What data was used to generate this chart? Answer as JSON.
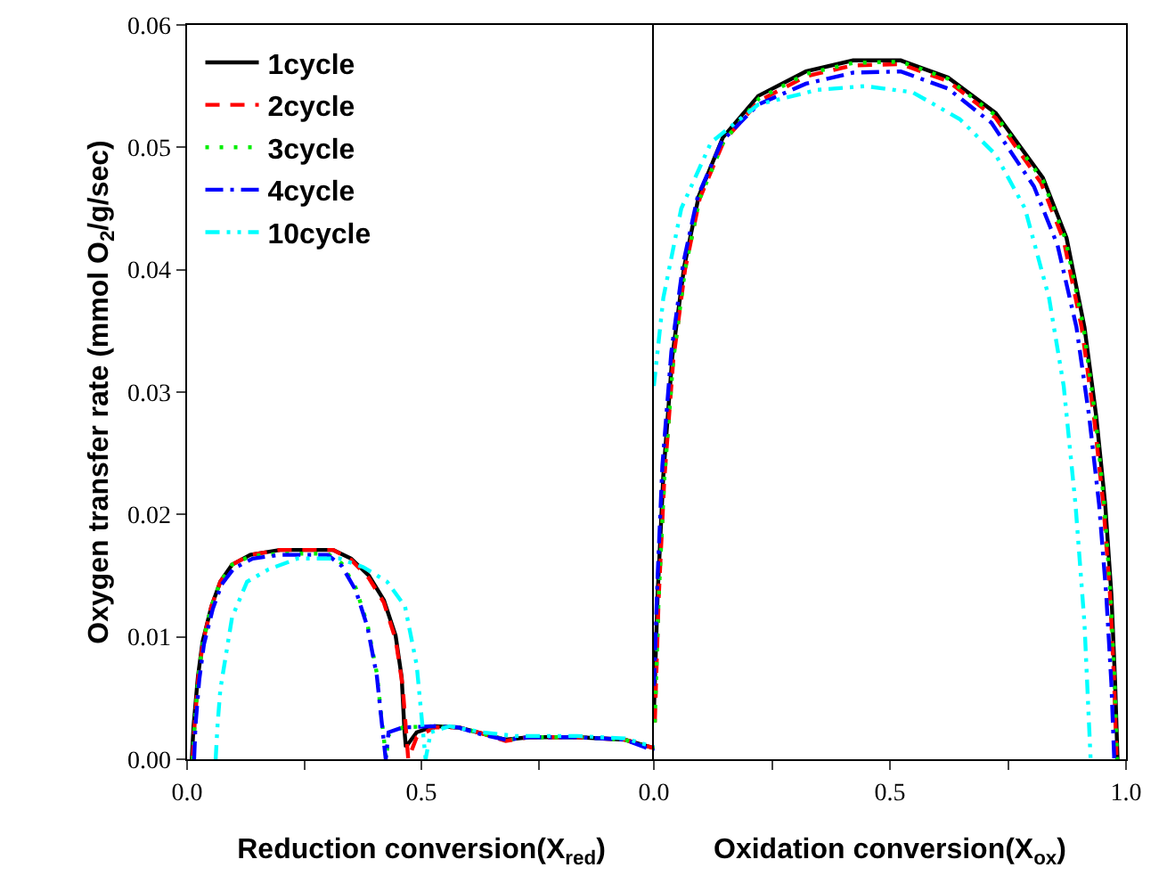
{
  "chart_data": [
    {
      "type": "line",
      "ylabel": "Oxygen transfer rate (mmol O$_{2}$/g/sec)",
      "xlabel": "Reduction conversion(X$_{red}$)",
      "xlim": [
        0,
        1.0
      ],
      "xticks": [
        {
          "value": 0,
          "label": "0.0"
        },
        {
          "value": 0.25,
          "label": null
        },
        0.5,
        {
          "value": 0.75,
          "label": null
        }
      ],
      "ylim": [
        0,
        0.06
      ],
      "yticks": [
        {
          "value": 0,
          "label": "0.00"
        },
        0.01,
        0.02,
        0.03,
        0.04,
        0.05,
        0.06
      ],
      "legend": "top left",
      "series": [
        {
          "name": "1cycle",
          "color": "#000000",
          "line_style": "solid",
          "x": [
            0.01,
            0.014,
            0.023,
            0.033,
            0.052,
            0.071,
            0.096,
            0.135,
            0.198,
            0.312,
            0.35,
            0.388,
            0.42,
            0.445,
            0.458,
            0.464,
            0.467,
            0.49,
            0.528,
            0.579,
            0.63,
            0.68,
            0.731,
            0.832,
            0.934,
            0.997
          ],
          "values": [
            0,
            0.0028,
            0.0067,
            0.0096,
            0.0125,
            0.0145,
            0.0159,
            0.0167,
            0.0171,
            0.0171,
            0.0164,
            0.015,
            0.013,
            0.0101,
            0.0067,
            0.0023,
            0.001,
            0.0022,
            0.0027,
            0.0026,
            0.0021,
            0.0016,
            0.0018,
            0.0018,
            0.0016,
            0.0009
          ]
        },
        {
          "name": "2cycle",
          "color": "#ff0000",
          "line_style": "dashed",
          "x": [
            0.012,
            0.016,
            0.024,
            0.034,
            0.052,
            0.071,
            0.096,
            0.135,
            0.198,
            0.312,
            0.35,
            0.388,
            0.42,
            0.445,
            0.46,
            0.468,
            0.472,
            0.49,
            0.528,
            0.579,
            0.63,
            0.68,
            0.731,
            0.832,
            0.934,
            0.997
          ],
          "values": [
            0,
            0.0028,
            0.0067,
            0.0096,
            0.0125,
            0.0145,
            0.0159,
            0.0167,
            0.0171,
            0.0171,
            0.0163,
            0.0148,
            0.0128,
            0.0098,
            0.006,
            0.002,
            0,
            0.0018,
            0.0026,
            0.0026,
            0.0021,
            0.0015,
            0.0018,
            0.0018,
            0.0016,
            0.0009
          ]
        },
        {
          "name": "3cycle",
          "color": "#00ee00",
          "line_style": "dotted",
          "x": [
            0.012,
            0.016,
            0.024,
            0.034,
            0.052,
            0.071,
            0.096,
            0.135,
            0.198,
            0.3,
            0.33,
            0.36,
            0.385,
            0.405,
            0.416,
            0.425,
            0.43,
            0.46,
            0.528,
            0.579,
            0.63,
            0.68,
            0.731,
            0.832,
            0.934,
            0.997
          ],
          "values": [
            0,
            0.0028,
            0.0067,
            0.0096,
            0.0125,
            0.0145,
            0.0159,
            0.0166,
            0.0168,
            0.0168,
            0.016,
            0.014,
            0.011,
            0.007,
            0.003,
            0,
            0.002,
            0.0026,
            0.0027,
            0.0026,
            0.0021,
            0.0016,
            0.0018,
            0.0018,
            0.0016,
            0.0008
          ]
        },
        {
          "name": "4cycle",
          "color": "#0000ff",
          "line_style": "dashdot",
          "x": [
            0.015,
            0.018,
            0.026,
            0.036,
            0.055,
            0.074,
            0.1,
            0.14,
            0.198,
            0.3,
            0.33,
            0.36,
            0.385,
            0.405,
            0.416,
            0.424,
            0.43,
            0.46,
            0.528,
            0.579,
            0.63,
            0.68,
            0.731,
            0.832,
            0.934,
            0.997
          ],
          "values": [
            0,
            0.0028,
            0.0065,
            0.0094,
            0.0123,
            0.0143,
            0.0156,
            0.0164,
            0.0167,
            0.0167,
            0.0158,
            0.0138,
            0.0108,
            0.0068,
            0.0028,
            0,
            0.0022,
            0.0026,
            0.0027,
            0.0026,
            0.002,
            0.0016,
            0.0018,
            0.0018,
            0.0016,
            0.0007
          ]
        },
        {
          "name": "10cycle",
          "color": "#00ffff",
          "line_style": "dashdotdot",
          "x": [
            0.061,
            0.065,
            0.071,
            0.096,
            0.128,
            0.173,
            0.236,
            0.325,
            0.376,
            0.427,
            0.465,
            0.49,
            0.509,
            0.52,
            0.56,
            0.63,
            0.7,
            0.832,
            0.934,
            0.997
          ],
          "values": [
            0,
            0.0028,
            0.0057,
            0.0116,
            0.0145,
            0.0155,
            0.0164,
            0.0164,
            0.0157,
            0.0145,
            0.0125,
            0.0077,
            0,
            0.0022,
            0.0027,
            0.0022,
            0.0019,
            0.0019,
            0.0017,
            0.001
          ]
        }
      ]
    },
    {
      "type": "line",
      "xlabel": "Oxidation conversion(X$_{ox}$)",
      "xlim": [
        0,
        1.0
      ],
      "xticks": [
        {
          "value": 0,
          "label": "0.0"
        },
        {
          "value": 0.25,
          "label": null
        },
        0.5,
        {
          "value": 0.75,
          "label": null
        },
        {
          "value": 1.0,
          "label": "1.0"
        }
      ],
      "ylim": [
        0,
        0.06
      ],
      "tick_labels": "x",
      "series": [
        {
          "color": "#000000",
          "line_style": "solid",
          "x": [
            0,
            0.008,
            0.02,
            0.039,
            0.064,
            0.095,
            0.146,
            0.221,
            0.322,
            0.422,
            0.523,
            0.623,
            0.724,
            0.824,
            0.874,
            0.912,
            0.937,
            0.956,
            0.969,
            0.977,
            0.982
          ],
          "values": [
            0.0038,
            0.0135,
            0.0232,
            0.0329,
            0.0402,
            0.046,
            0.0508,
            0.0542,
            0.0562,
            0.0571,
            0.0571,
            0.0557,
            0.0528,
            0.0475,
            0.0426,
            0.0353,
            0.028,
            0.0208,
            0.0135,
            0.0062,
            0
          ]
        },
        {
          "color": "#ff0000",
          "line_style": "dashed",
          "x": [
            0.002,
            0.01,
            0.022,
            0.041,
            0.066,
            0.097,
            0.148,
            0.223,
            0.322,
            0.422,
            0.523,
            0.623,
            0.724,
            0.82,
            0.868,
            0.906,
            0.932,
            0.952,
            0.966,
            0.975,
            0.98
          ],
          "values": [
            0.003,
            0.013,
            0.0228,
            0.0326,
            0.04,
            0.0458,
            0.0505,
            0.0538,
            0.0558,
            0.0567,
            0.0568,
            0.0554,
            0.0524,
            0.0471,
            0.0424,
            0.0353,
            0.028,
            0.0208,
            0.0135,
            0.0062,
            0
          ]
        },
        {
          "color": "#00ee00",
          "line_style": "dotted",
          "x": [
            0.002,
            0.01,
            0.022,
            0.041,
            0.066,
            0.097,
            0.148,
            0.223,
            0.322,
            0.422,
            0.523,
            0.623,
            0.724,
            0.824,
            0.872,
            0.91,
            0.935,
            0.954,
            0.967,
            0.976,
            0.981
          ],
          "values": [
            0.003,
            0.013,
            0.0228,
            0.0326,
            0.04,
            0.0458,
            0.0505,
            0.054,
            0.056,
            0.0569,
            0.057,
            0.0556,
            0.0526,
            0.0473,
            0.0425,
            0.0353,
            0.028,
            0.0208,
            0.0135,
            0.0062,
            0
          ]
        },
        {
          "color": "#0000ff",
          "line_style": "dashdot",
          "x": [
            0,
            0.008,
            0.018,
            0.037,
            0.062,
            0.093,
            0.144,
            0.221,
            0.322,
            0.422,
            0.523,
            0.623,
            0.715,
            0.805,
            0.855,
            0.895,
            0.922,
            0.943,
            0.958,
            0.969,
            0.975
          ],
          "values": [
            0.006,
            0.015,
            0.024,
            0.0333,
            0.0405,
            0.046,
            0.0505,
            0.0535,
            0.0552,
            0.0561,
            0.0562,
            0.0548,
            0.052,
            0.0468,
            0.042,
            0.0353,
            0.028,
            0.0208,
            0.0135,
            0.0062,
            0
          ]
        },
        {
          "color": "#00ffff",
          "line_style": "dashdotdot",
          "x": [
            0,
            0.02,
            0.058,
            0.121,
            0.221,
            0.347,
            0.447,
            0.548,
            0.648,
            0.724,
            0.786,
            0.837,
            0.868,
            0.893,
            0.912,
            0.925
          ],
          "values": [
            0.0305,
            0.0377,
            0.045,
            0.0504,
            0.0535,
            0.0547,
            0.055,
            0.0545,
            0.0523,
            0.0494,
            0.045,
            0.0377,
            0.0305,
            0.0208,
            0.0111,
            0
          ]
        }
      ]
    }
  ]
}
